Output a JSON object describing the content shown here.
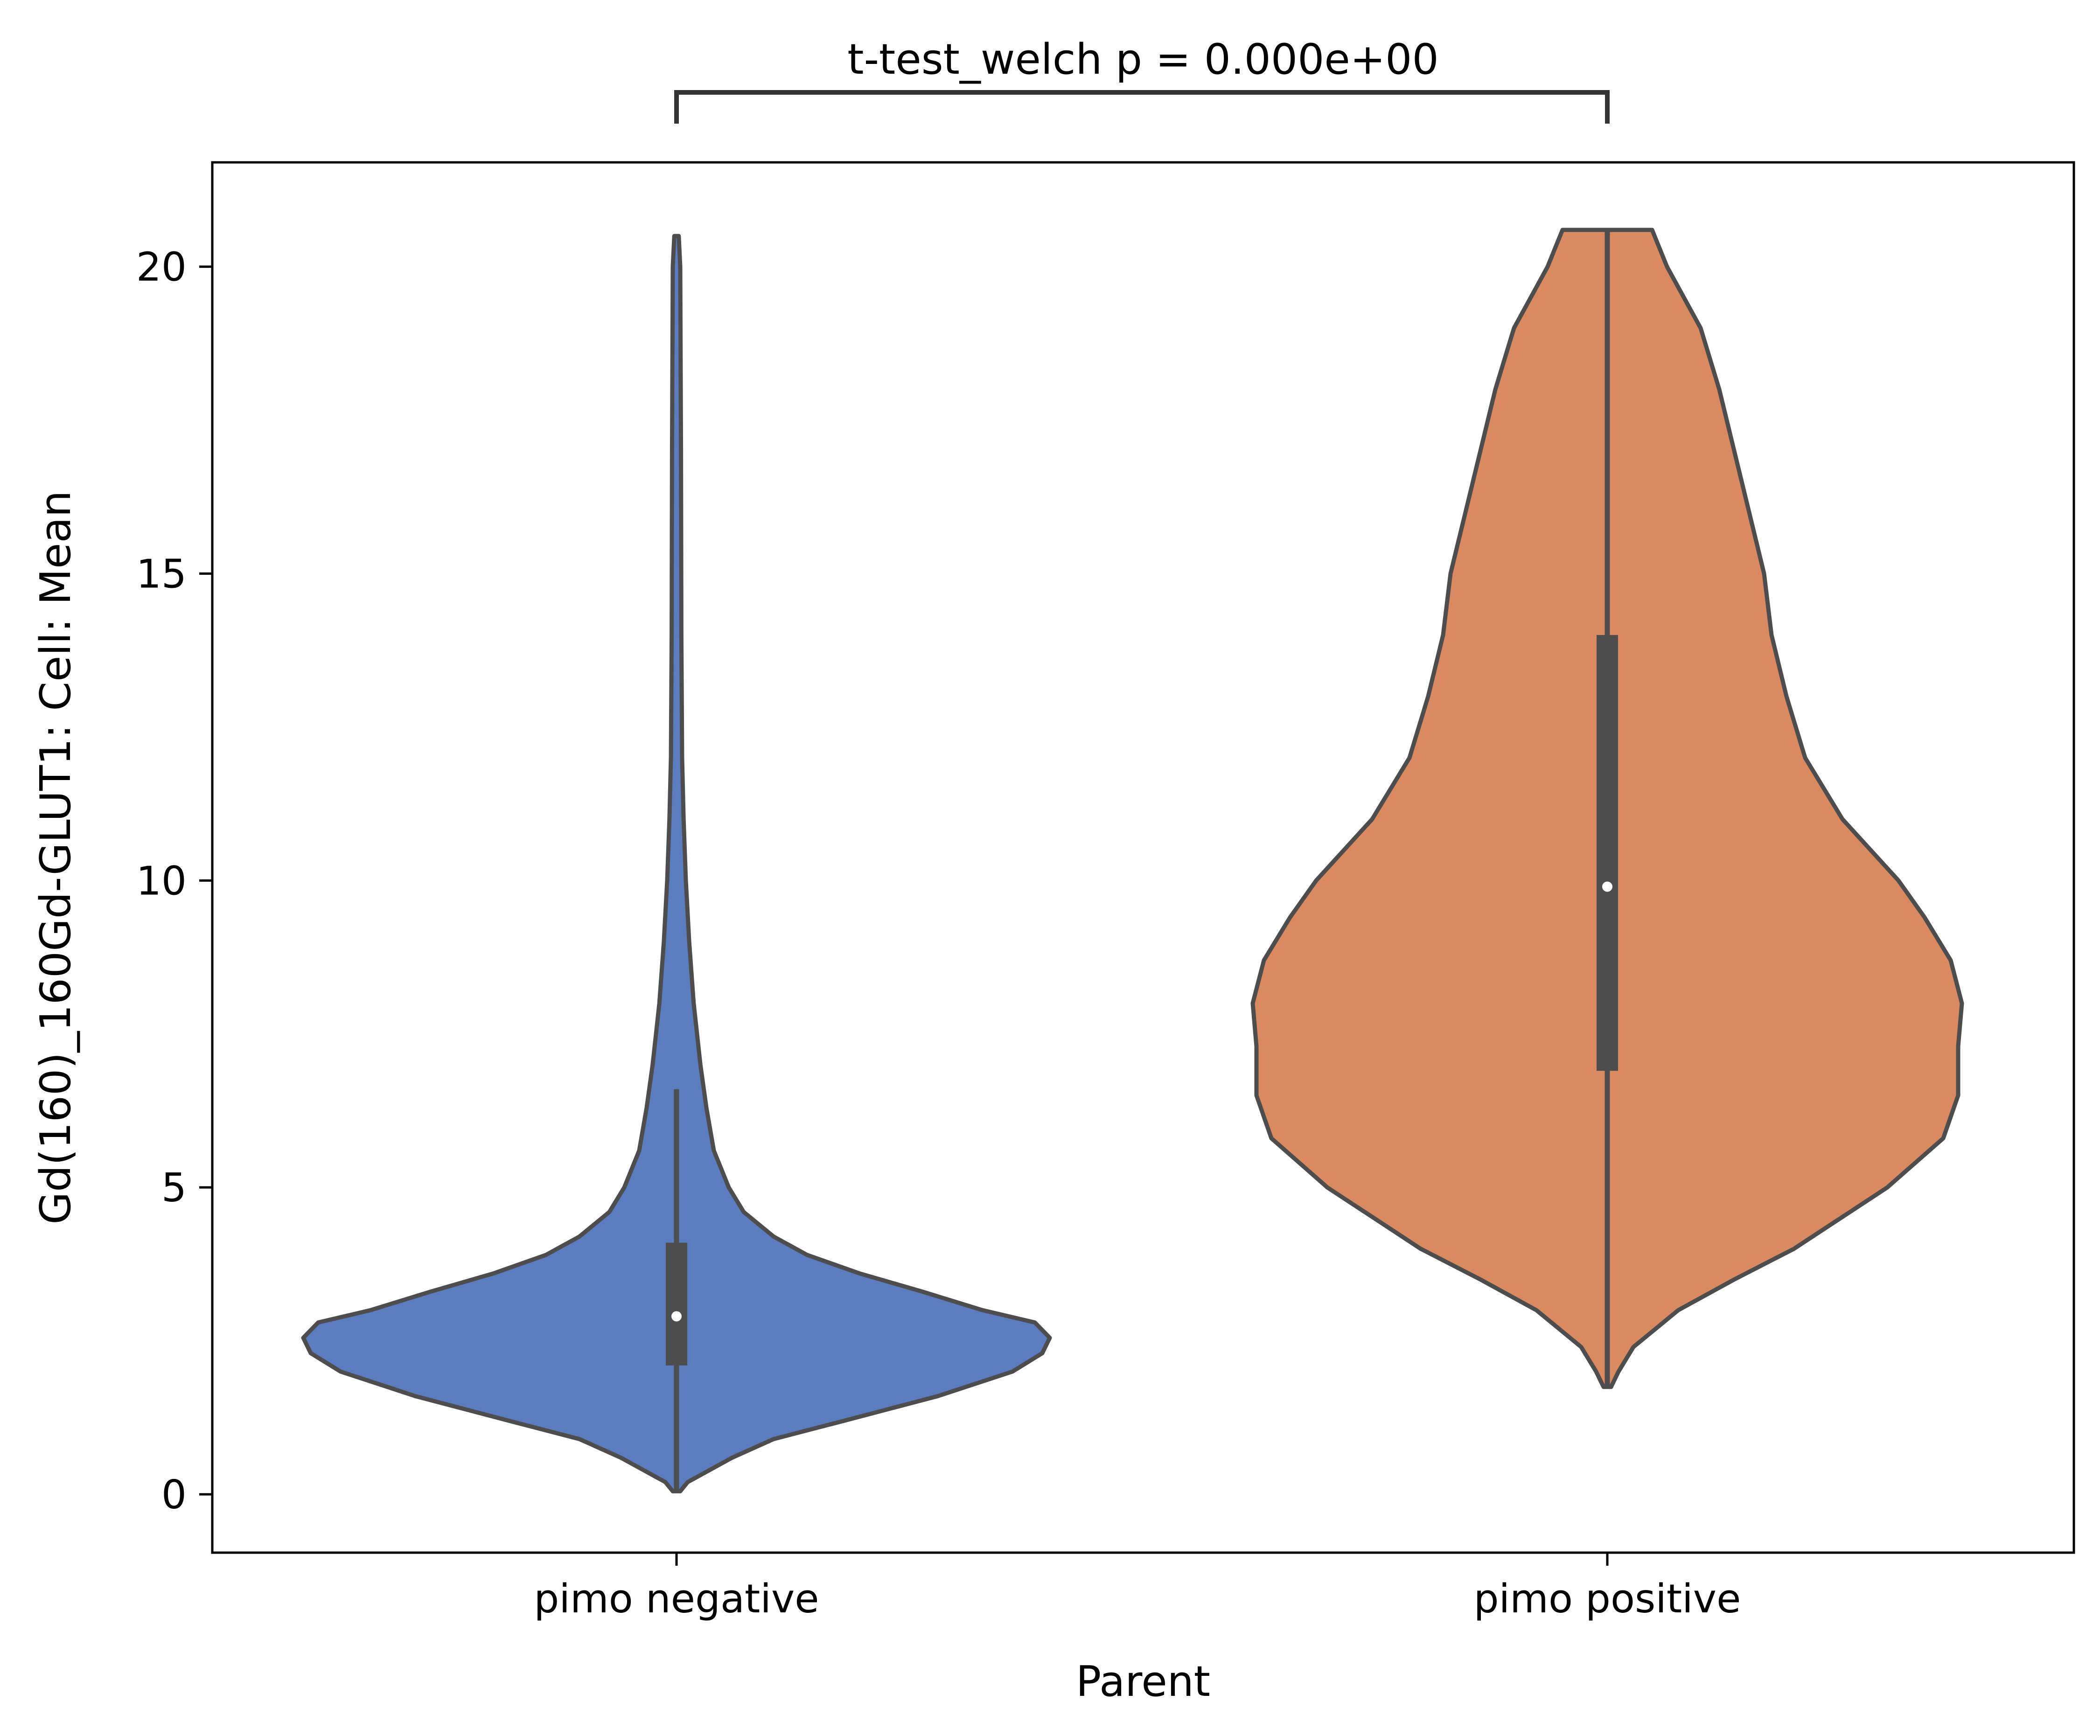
{
  "chart_data": {
    "type": "violin",
    "xlabel": "Parent",
    "ylabel": "Gd(160)_160Gd-GLUT1: Cell: Mean",
    "ylim": [
      -0.95,
      21.7
    ],
    "yticks": [
      0,
      5,
      10,
      15,
      20
    ],
    "categories": [
      "pimo negative",
      "pimo positive"
    ],
    "colors": [
      "#5b7dc0",
      "#d98a60"
    ],
    "edge_color": "#4d4d4d",
    "annotation": {
      "text": "t-test_welch p = 0.000e+00",
      "from": "pimo negative",
      "to": "pimo positive"
    },
    "series": [
      {
        "name": "pimo negative",
        "min": 0.05,
        "max": 20.5,
        "q1": 2.1,
        "median": 2.9,
        "q3": 4.1,
        "whisker_low": 0.05,
        "whisker_high": 6.6,
        "density": [
          [
            0.05,
            0.01
          ],
          [
            0.2,
            0.03
          ],
          [
            0.6,
            0.15
          ],
          [
            0.9,
            0.26
          ],
          [
            1.2,
            0.45
          ],
          [
            1.6,
            0.7
          ],
          [
            2.0,
            0.9
          ],
          [
            2.3,
            0.98
          ],
          [
            2.55,
            1.0
          ],
          [
            2.8,
            0.96
          ],
          [
            3.0,
            0.82
          ],
          [
            3.3,
            0.66
          ],
          [
            3.6,
            0.49
          ],
          [
            3.9,
            0.35
          ],
          [
            4.2,
            0.26
          ],
          [
            4.6,
            0.18
          ],
          [
            5.0,
            0.14
          ],
          [
            5.6,
            0.1
          ],
          [
            6.3,
            0.08
          ],
          [
            7.0,
            0.064
          ],
          [
            8.0,
            0.046
          ],
          [
            9.0,
            0.034
          ],
          [
            10.0,
            0.025
          ],
          [
            11.0,
            0.019
          ],
          [
            12.0,
            0.015
          ],
          [
            14.0,
            0.013
          ],
          [
            17.0,
            0.012
          ],
          [
            20.0,
            0.01
          ],
          [
            20.5,
            0.006
          ]
        ]
      },
      {
        "name": "pimo positive",
        "min": 1.75,
        "max": 20.6,
        "q1": 6.9,
        "median": 9.9,
        "q3": 14.0,
        "whisker_low": 1.75,
        "whisker_high": 20.6,
        "density": [
          [
            1.75,
            0.01
          ],
          [
            2.0,
            0.03
          ],
          [
            2.4,
            0.07
          ],
          [
            3.0,
            0.19
          ],
          [
            3.5,
            0.34
          ],
          [
            4.0,
            0.5
          ],
          [
            5.0,
            0.75
          ],
          [
            5.8,
            0.9
          ],
          [
            6.5,
            0.94
          ],
          [
            7.3,
            0.94
          ],
          [
            8.0,
            0.95
          ],
          [
            8.7,
            0.92
          ],
          [
            9.4,
            0.85
          ],
          [
            10.0,
            0.78
          ],
          [
            11.0,
            0.63
          ],
          [
            12.0,
            0.53
          ],
          [
            13.0,
            0.48
          ],
          [
            14.0,
            0.44
          ],
          [
            15.0,
            0.42
          ],
          [
            16.0,
            0.38
          ],
          [
            17.0,
            0.34
          ],
          [
            18.0,
            0.3
          ],
          [
            19.0,
            0.25
          ],
          [
            20.0,
            0.16
          ],
          [
            20.6,
            0.12
          ]
        ]
      }
    ]
  }
}
